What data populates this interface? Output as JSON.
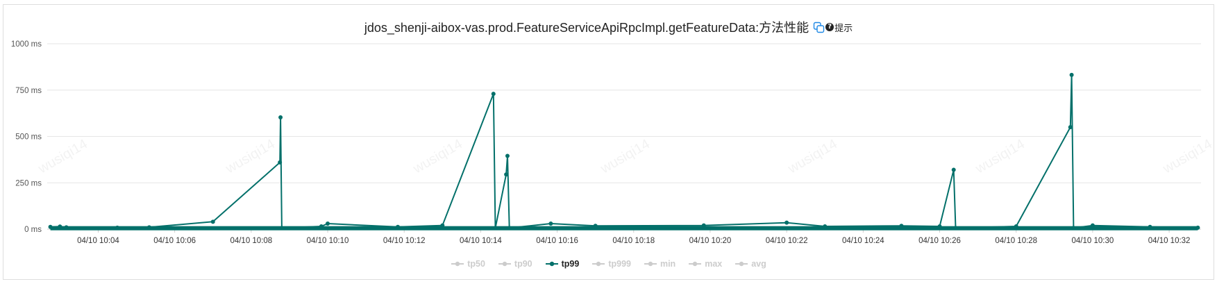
{
  "title": "jdos_shenji-aibox-vas.prod.FeatureServiceApiRpcImpl.getFeatureData:方法性能",
  "hint_label": "提示",
  "hint_glyph": "?",
  "icons": {
    "copy": "copy-icon",
    "hint": "question-circle-icon"
  },
  "colors": {
    "series": "#03706a",
    "inactive": "#cccccc",
    "grid": "#e6e6e6",
    "copy_icon": "#1e88e5"
  },
  "watermark_text": "wusiqi14",
  "legend": [
    {
      "label": "tp50",
      "active": false
    },
    {
      "label": "tp90",
      "active": false
    },
    {
      "label": "tp99",
      "active": true
    },
    {
      "label": "tp999",
      "active": false
    },
    {
      "label": "min",
      "active": false
    },
    {
      "label": "max",
      "active": false
    },
    {
      "label": "avg",
      "active": false
    }
  ],
  "chart_data": {
    "type": "line",
    "title": "jdos_shenji-aibox-vas.prod.FeatureServiceApiRpcImpl.getFeatureData:方法性能",
    "x_unit": "minutes",
    "xlim": [
      "04/10 10:02:40",
      "04/10 10:32:50"
    ],
    "ylim": [
      0,
      1000
    ],
    "yticks": [
      0,
      250,
      500,
      750,
      1000
    ],
    "ytick_labels": [
      "0 ms",
      "250 ms",
      "500 ms",
      "750 ms",
      "1000 ms"
    ],
    "xtick_labels": [
      "04/10 10:04",
      "04/10 10:06",
      "04/10 10:08",
      "04/10 10:10",
      "04/10 10:12",
      "04/10 10:14",
      "04/10 10:16",
      "04/10 10:18",
      "04/10 10:20",
      "04/10 10:22",
      "04/10 10:24",
      "04/10 10:26",
      "04/10 10:28",
      "04/10 10:30",
      "04/10 10:32"
    ],
    "grid": true,
    "legend_position": "bottom",
    "series": [
      {
        "name": "tp99",
        "active": true,
        "baseline_ms": 5,
        "points": [
          [
            "04/10 10:02:45",
            12
          ],
          [
            "04/10 10:03:00",
            14
          ],
          [
            "04/10 10:03:10",
            10
          ],
          [
            "04/10 10:04:30",
            8
          ],
          [
            "04/10 10:05:20",
            10
          ],
          [
            "04/10 10:07:00",
            40
          ],
          [
            "04/10 10:08:45",
            360
          ],
          [
            "04/10 10:08:46",
            603
          ],
          [
            "04/10 10:08:48",
            6
          ],
          [
            "04/10 10:09:50",
            15
          ],
          [
            "04/10 10:10:00",
            30
          ],
          [
            "04/10 10:11:50",
            12
          ],
          [
            "04/10 10:13:00",
            20
          ],
          [
            "04/10 10:14:20",
            730
          ],
          [
            "04/10 10:14:23",
            6
          ],
          [
            "04/10 10:14:40",
            295
          ],
          [
            "04/10 10:14:42",
            395
          ],
          [
            "04/10 10:14:45",
            6
          ],
          [
            "04/10 10:15:50",
            30
          ],
          [
            "04/10 10:17:00",
            18
          ],
          [
            "04/10 10:19:50",
            20
          ],
          [
            "04/10 10:22:00",
            35
          ],
          [
            "04/10 10:23:00",
            15
          ],
          [
            "04/10 10:25:00",
            18
          ],
          [
            "04/10 10:26:00",
            15
          ],
          [
            "04/10 10:26:22",
            320
          ],
          [
            "04/10 10:26:25",
            6
          ],
          [
            "04/10 10:28:00",
            15
          ],
          [
            "04/10 10:29:25",
            550
          ],
          [
            "04/10 10:29:27",
            832
          ],
          [
            "04/10 10:29:30",
            6
          ],
          [
            "04/10 10:30:00",
            20
          ],
          [
            "04/10 10:31:30",
            12
          ],
          [
            "04/10 10:32:45",
            8
          ]
        ]
      },
      {
        "name": "tp50",
        "active": false
      },
      {
        "name": "tp90",
        "active": false
      },
      {
        "name": "tp999",
        "active": false
      },
      {
        "name": "min",
        "active": false
      },
      {
        "name": "max",
        "active": false
      },
      {
        "name": "avg",
        "active": false
      }
    ]
  }
}
